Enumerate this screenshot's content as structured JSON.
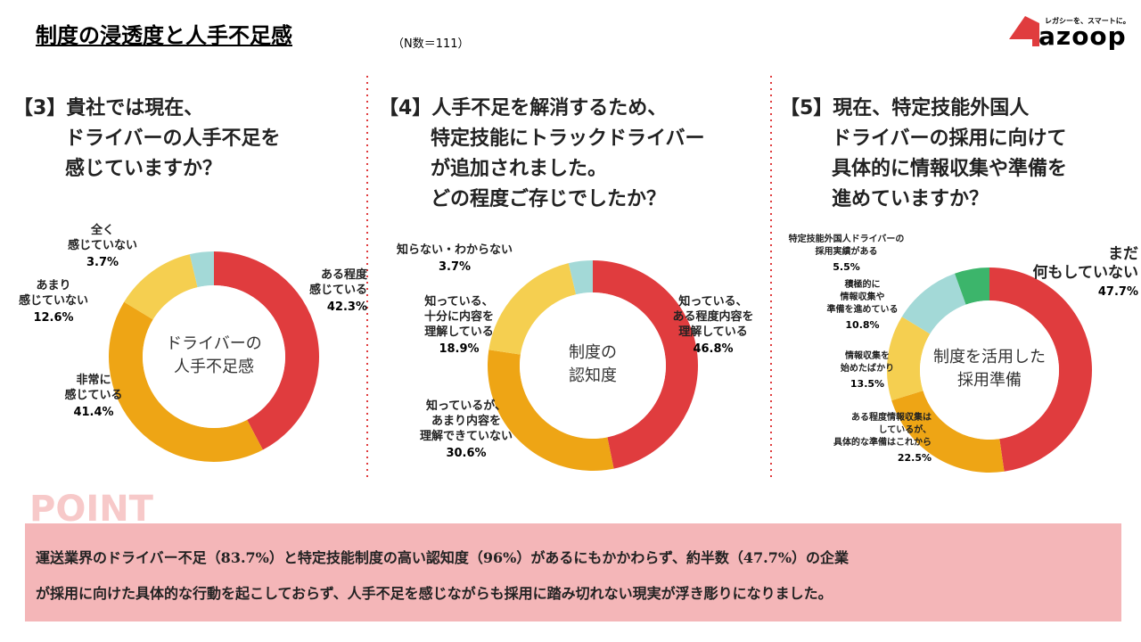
{
  "header": {
    "title": "制度の浸透度と人手不足感",
    "note": "（N数＝111）"
  },
  "logo": {
    "tagline": "レガシーを、スマートに。",
    "name": "azoop"
  },
  "chart_data": [
    {
      "type": "donut",
      "question": "【3】貴社では現在、\nドライバーの人手不足を\n感じていますか？",
      "center_label": "ドライバーの\n人手不足感",
      "categories": [
        "ある程度\n感じている",
        "非常に\n感じている",
        "あまり\n感じていない",
        "全く\n感じていない"
      ],
      "values": [
        42.3,
        41.4,
        12.6,
        3.7
      ],
      "value_labels": [
        "42.3%",
        "41.4%",
        "12.6%",
        "3.7%"
      ],
      "colors": [
        "#e03c3e",
        "#eea515",
        "#f5cf50",
        "#a3d9d7"
      ]
    },
    {
      "type": "donut",
      "question": "【4】人手不足を解消するため、\n特定技能にトラックドライバー\nが追加されました。\nどの程度ご存じでしたか？",
      "center_label": "制度の\n認知度",
      "categories": [
        "知っている、\nある程度内容を\n理解している",
        "知っているが、\nあまり内容を\n理解できていない",
        "知っている、\n十分に内容を\n理解している",
        "知らない・わからない"
      ],
      "values": [
        46.8,
        30.6,
        18.9,
        3.7
      ],
      "value_labels": [
        "46.8%",
        "30.6%",
        "18.9%",
        "3.7%"
      ],
      "colors": [
        "#e03c3e",
        "#eea515",
        "#f5cf50",
        "#a3d9d7"
      ]
    },
    {
      "type": "donut",
      "question": "【5】現在、特定技能外国人\nドライバーの採用に向けて\n具体的に情報収集や準備を\n進めていますか？",
      "center_label": "制度を活用した\n採用準備",
      "categories": [
        "まだ\n何もしていない",
        "ある程度情報収集は\nしているが、\n具体的な準備はこれから",
        "情報収集を\n始めたばかり",
        "積極的に\n情報収集や\n準備を進めている",
        "特定技能外国人ドライバーの\n採用実績がある"
      ],
      "values": [
        47.7,
        22.5,
        13.5,
        10.8,
        5.5
      ],
      "value_labels": [
        "47.7%",
        "22.5%",
        "13.5%",
        "10.8%",
        "5.5%"
      ],
      "colors": [
        "#e03c3e",
        "#eea515",
        "#f5cf50",
        "#a3d9d7",
        "#3cb56b"
      ]
    }
  ],
  "point": {
    "heading": "POINT",
    "lines": [
      "運送業界のドライバー不足（83.7%）と特定技能制度の高い認知度（96%）があるにもかかわらず、約半数（47.7%）の企業",
      "が採用に向けた具体的な行動を起こしておらず、人手不足を感じながらも採用に踏み切れない現実が浮き彫りになりました。"
    ]
  }
}
